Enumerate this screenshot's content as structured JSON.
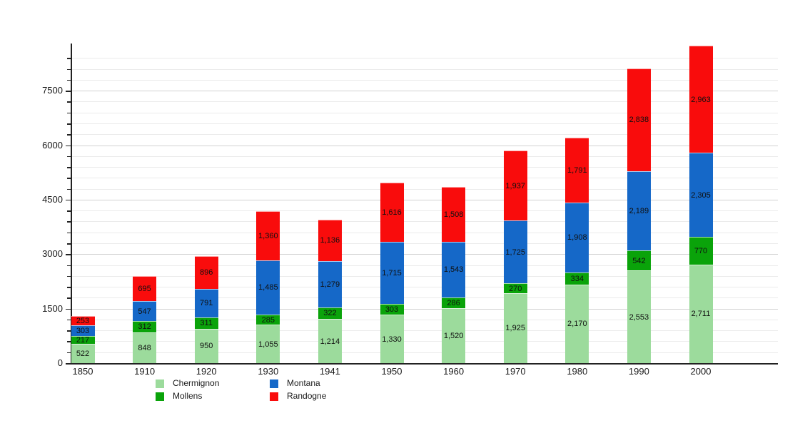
{
  "chart_data": {
    "type": "bar",
    "stacked": true,
    "title": "",
    "xlabel": "",
    "ylabel": "",
    "categories": [
      "1850",
      "1910",
      "1920",
      "1930",
      "1941",
      "1950",
      "1960",
      "1970",
      "1980",
      "1990",
      "2000"
    ],
    "series": [
      {
        "name": "Chermignon",
        "color": "#9CDB9C",
        "values": [
          522,
          848,
          950,
          1055,
          1214,
          1330,
          1520,
          1925,
          2170,
          2553,
          2711
        ]
      },
      {
        "name": "Mollens",
        "color": "#0AA30A",
        "values": [
          217,
          312,
          311,
          285,
          322,
          303,
          286,
          270,
          334,
          542,
          770
        ]
      },
      {
        "name": "Montana",
        "color": "#1568C8",
        "values": [
          303,
          547,
          791,
          1485,
          1279,
          1715,
          1543,
          1725,
          1908,
          2189,
          2305
        ]
      },
      {
        "name": "Randogne",
        "color": "#F90C0C",
        "values": [
          253,
          695,
          896,
          1360,
          1136,
          1616,
          1508,
          1937,
          1791,
          2838,
          2963
        ]
      }
    ],
    "ylim": [
      0,
      8800
    ],
    "y_major_tick_labels": [
      "0",
      "1500",
      "3000",
      "4500",
      "6000",
      "7500"
    ],
    "y_major_step": 1500,
    "y_minor_step": 300,
    "grid": true,
    "value_labels": "comma-separated thousands, centered in each segment",
    "legend_position": "bottom-left, two columns",
    "legend_columns": [
      [
        "Chermignon",
        "Mollens"
      ],
      [
        "Montana",
        "Randogne"
      ]
    ],
    "colors": {
      "background": "#ffffff",
      "axis": "#222222",
      "grid_major": "#d2d2d2",
      "grid_minor": "#ebebeb",
      "label_text": "#1a1a1a",
      "value_text": "#101010"
    }
  }
}
